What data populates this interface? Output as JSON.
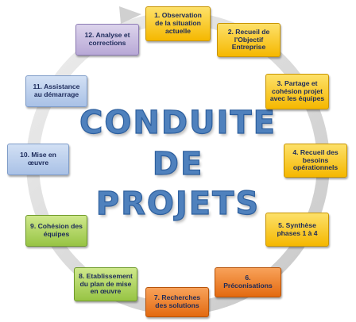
{
  "title": {
    "line1": "CONDUITE",
    "line2": "DE",
    "line3": "PROJETS"
  },
  "steps": [
    {
      "label": "1. Observation\nde la situation\nactuelle",
      "color": "yellow"
    },
    {
      "label": "2. Recueil de\nl'Objectif\nEntreprise",
      "color": "yellow"
    },
    {
      "label": "3. Partage et\ncohésion projet\navec les équipes",
      "color": "yellow"
    },
    {
      "label": "4. Recueil des\nbesoins\nopérationnels",
      "color": "yellow"
    },
    {
      "label": "5. Synthèse\nphases 1 à 4",
      "color": "yellow"
    },
    {
      "label": "6.\nPréconisations",
      "color": "orange"
    },
    {
      "label": "7. Recherches\ndes solutions",
      "color": "orange"
    },
    {
      "label": "8. Etablissement\ndu plan de mise\nen œuvre",
      "color": "green"
    },
    {
      "label": "9. Cohésion des\néquipes",
      "color": "green"
    },
    {
      "label": "10. Mise en\nœuvre",
      "color": "blue"
    },
    {
      "label": "11. Assistance\nau démarrage",
      "color": "blue"
    },
    {
      "label": "12. Analyse et\ncorrections",
      "color": "purple"
    }
  ],
  "colors": {
    "ring": "#d9d9d9",
    "title": "#4f81bd"
  }
}
